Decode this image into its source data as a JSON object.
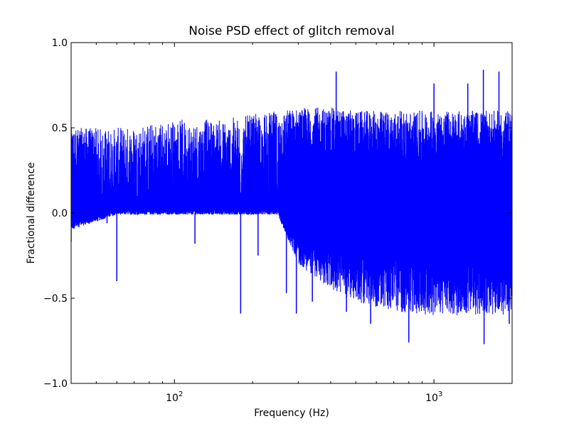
{
  "chart_data": {
    "type": "line",
    "title": "Noise PSD effect of glitch removal",
    "xlabel": "Frequency (Hz)",
    "ylabel": "Fractional difference",
    "x_scale": "log",
    "xlim": [
      40,
      2000
    ],
    "ylim": [
      -1.0,
      1.0
    ],
    "x_ticks": [
      {
        "value": 100,
        "label": "10",
        "exp": "2"
      },
      {
        "value": 1000,
        "label": "10",
        "exp": "3"
      }
    ],
    "y_ticks": [
      {
        "value": 1.0,
        "label": "1.0"
      },
      {
        "value": 0.5,
        "label": "0.5"
      },
      {
        "value": 0.0,
        "label": "0.0"
      },
      {
        "value": -0.5,
        "label": "−0.5"
      },
      {
        "value": -1.0,
        "label": "−1.0"
      }
    ],
    "grid": false,
    "legend": "none",
    "color": "#0000ff",
    "series": [
      {
        "description_note": "",
        "envelope": [
          {
            "x": 40,
            "ymin": -0.1,
            "ymax": 0.5
          },
          {
            "x": 60,
            "ymin": -0.01,
            "ymax": 0.5
          },
          {
            "x": 100,
            "ymin": -0.01,
            "ymax": 0.55
          },
          {
            "x": 150,
            "ymin": -0.01,
            "ymax": 0.55
          },
          {
            "x": 250,
            "ymin": -0.01,
            "ymax": 0.6
          },
          {
            "x": 300,
            "ymin": -0.3,
            "ymax": 0.62
          },
          {
            "x": 400,
            "ymin": -0.45,
            "ymax": 0.62
          },
          {
            "x": 500,
            "ymin": -0.52,
            "ymax": 0.6
          },
          {
            "x": 700,
            "ymin": -0.58,
            "ymax": 0.6
          },
          {
            "x": 1000,
            "ymin": -0.6,
            "ymax": 0.6
          },
          {
            "x": 1500,
            "ymin": -0.6,
            "ymax": 0.6
          },
          {
            "x": 2000,
            "ymin": -0.6,
            "ymax": 0.6
          }
        ],
        "spikes": [
          {
            "x": 40,
            "y": -0.17
          },
          {
            "x": 55,
            "y": -0.06
          },
          {
            "x": 60,
            "y": -0.4
          },
          {
            "x": 120,
            "y": -0.18
          },
          {
            "x": 180,
            "y": -0.59
          },
          {
            "x": 210,
            "y": -0.25
          },
          {
            "x": 270,
            "y": -0.47
          },
          {
            "x": 295,
            "y": -0.59
          },
          {
            "x": 340,
            "y": -0.52
          },
          {
            "x": 420,
            "y": 0.83
          },
          {
            "x": 460,
            "y": -0.58
          },
          {
            "x": 570,
            "y": -0.65
          },
          {
            "x": 800,
            "y": -0.76
          },
          {
            "x": 1000,
            "y": 0.76
          },
          {
            "x": 1350,
            "y": 0.76
          },
          {
            "x": 1550,
            "y": 0.84
          },
          {
            "x": 1560,
            "y": -0.77
          },
          {
            "x": 1780,
            "y": 0.83
          },
          {
            "x": 1950,
            "y": -0.65
          }
        ]
      }
    ]
  }
}
